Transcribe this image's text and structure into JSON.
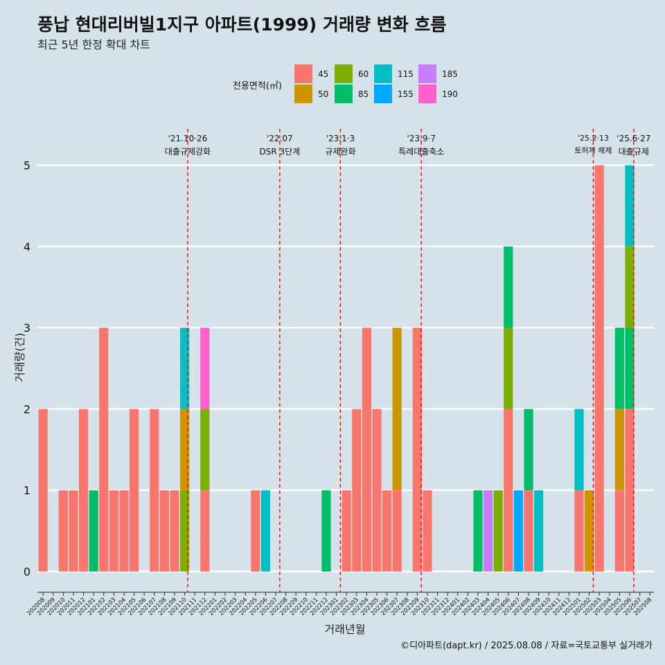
{
  "chart_data": {
    "type": "bar",
    "stacked": true,
    "title": "풍납 현대리버빌1지구 아파트(1999) 거래량 변화 흐름",
    "subtitle": "최근 5년 한정 확대 차트",
    "xlabel": "거래년월",
    "ylabel": "거래량(건)",
    "caption": "©디아파트(dapt.kr) / 2025.08.08 / 자료=국토교통부 실거래가",
    "legend_title": "전용면적(㎡)",
    "legend": [
      {
        "name": "45",
        "color": "#F8766D"
      },
      {
        "name": "50",
        "color": "#CD9600"
      },
      {
        "name": "60",
        "color": "#7CAE00"
      },
      {
        "name": "85",
        "color": "#00BE67"
      },
      {
        "name": "115",
        "color": "#00BFC4"
      },
      {
        "name": "155",
        "color": "#00A9FF"
      },
      {
        "name": "185",
        "color": "#C77CFF"
      },
      {
        "name": "190",
        "color": "#FF61CC"
      }
    ],
    "ylim": [
      0,
      5
    ],
    "yticks": [
      0,
      1,
      2,
      3,
      4,
      5
    ],
    "categories": [
      "202008",
      "202009",
      "202010",
      "202011",
      "202012",
      "202101",
      "202102",
      "202103",
      "202104",
      "202105",
      "202106",
      "202107",
      "202108",
      "202109",
      "202110",
      "202111",
      "202112",
      "202201",
      "202202",
      "202203",
      "202204",
      "202205",
      "202206",
      "202207",
      "202208",
      "202209",
      "202210",
      "202211",
      "202212",
      "202301",
      "202302",
      "202303",
      "202304",
      "202305",
      "202306",
      "202307",
      "202308",
      "202309",
      "202310",
      "202311",
      "202312",
      "202401",
      "202402",
      "202403",
      "202404",
      "202405",
      "202406",
      "202407",
      "202408",
      "202409",
      "202410",
      "202411",
      "202412",
      "202501",
      "202502",
      "202503",
      "202504",
      "202505",
      "202506",
      "202507",
      "202508"
    ],
    "data": [
      {
        "month": "202008",
        "segments": [
          {
            "area": "45",
            "value": 2
          }
        ]
      },
      {
        "month": "202010",
        "segments": [
          {
            "area": "45",
            "value": 1
          }
        ]
      },
      {
        "month": "202011",
        "segments": [
          {
            "area": "45",
            "value": 1
          }
        ]
      },
      {
        "month": "202012",
        "segments": [
          {
            "area": "45",
            "value": 2
          }
        ]
      },
      {
        "month": "202101",
        "segments": [
          {
            "area": "85",
            "value": 1
          }
        ]
      },
      {
        "month": "202102",
        "segments": [
          {
            "area": "45",
            "value": 3
          }
        ]
      },
      {
        "month": "202103",
        "segments": [
          {
            "area": "45",
            "value": 1
          }
        ]
      },
      {
        "month": "202104",
        "segments": [
          {
            "area": "45",
            "value": 1
          }
        ]
      },
      {
        "month": "202105",
        "segments": [
          {
            "area": "45",
            "value": 2
          }
        ]
      },
      {
        "month": "202107",
        "segments": [
          {
            "area": "45",
            "value": 2
          }
        ]
      },
      {
        "month": "202108",
        "segments": [
          {
            "area": "45",
            "value": 1
          }
        ]
      },
      {
        "month": "202109",
        "segments": [
          {
            "area": "45",
            "value": 1
          }
        ]
      },
      {
        "month": "202110",
        "segments": [
          {
            "area": "60",
            "value": 1
          },
          {
            "area": "50",
            "value": 1
          },
          {
            "area": "115",
            "value": 1
          }
        ]
      },
      {
        "month": "202112",
        "segments": [
          {
            "area": "45",
            "value": 1
          },
          {
            "area": "60",
            "value": 1
          },
          {
            "area": "190",
            "value": 1
          }
        ]
      },
      {
        "month": "202205",
        "segments": [
          {
            "area": "45",
            "value": 1
          }
        ]
      },
      {
        "month": "202206",
        "segments": [
          {
            "area": "115",
            "value": 1
          }
        ]
      },
      {
        "month": "202212",
        "segments": [
          {
            "area": "85",
            "value": 1
          }
        ]
      },
      {
        "month": "202302",
        "segments": [
          {
            "area": "45",
            "value": 1
          }
        ]
      },
      {
        "month": "202303",
        "segments": [
          {
            "area": "45",
            "value": 2
          }
        ]
      },
      {
        "month": "202304",
        "segments": [
          {
            "area": "45",
            "value": 3
          }
        ]
      },
      {
        "month": "202305",
        "segments": [
          {
            "area": "45",
            "value": 2
          }
        ]
      },
      {
        "month": "202306",
        "segments": [
          {
            "area": "45",
            "value": 1
          }
        ]
      },
      {
        "month": "202307",
        "segments": [
          {
            "area": "45",
            "value": 1
          },
          {
            "area": "50",
            "value": 2
          }
        ]
      },
      {
        "month": "202309",
        "segments": [
          {
            "area": "45",
            "value": 3
          }
        ]
      },
      {
        "month": "202310",
        "segments": [
          {
            "area": "45",
            "value": 1
          }
        ]
      },
      {
        "month": "202403",
        "segments": [
          {
            "area": "85",
            "value": 1
          }
        ]
      },
      {
        "month": "202404",
        "segments": [
          {
            "area": "185",
            "value": 1
          }
        ]
      },
      {
        "month": "202405",
        "segments": [
          {
            "area": "60",
            "value": 1
          }
        ]
      },
      {
        "month": "202406",
        "segments": [
          {
            "area": "45",
            "value": 2
          },
          {
            "area": "60",
            "value": 1
          },
          {
            "area": "85",
            "value": 1
          }
        ]
      },
      {
        "month": "202407",
        "segments": [
          {
            "area": "155",
            "value": 1
          }
        ]
      },
      {
        "month": "202408",
        "segments": [
          {
            "area": "45",
            "value": 1
          },
          {
            "area": "85",
            "value": 1
          }
        ]
      },
      {
        "month": "202409",
        "segments": [
          {
            "area": "115",
            "value": 1
          }
        ]
      },
      {
        "month": "202501",
        "segments": [
          {
            "area": "45",
            "value": 1
          },
          {
            "area": "115",
            "value": 1
          }
        ]
      },
      {
        "month": "202502",
        "segments": [
          {
            "area": "50",
            "value": 1
          }
        ]
      },
      {
        "month": "202503",
        "segments": [
          {
            "area": "45",
            "value": 5
          }
        ]
      },
      {
        "month": "202505",
        "segments": [
          {
            "area": "45",
            "value": 1
          },
          {
            "area": "50",
            "value": 1
          },
          {
            "area": "85",
            "value": 1
          }
        ]
      },
      {
        "month": "202506",
        "segments": [
          {
            "area": "45",
            "value": 2
          },
          {
            "area": "85",
            "value": 1
          },
          {
            "area": "60",
            "value": 1
          },
          {
            "area": "115",
            "value": 1
          }
        ]
      }
    ],
    "events": [
      {
        "date": "'21.10·26",
        "label": "대출규제강화",
        "month_position": 14.3
      },
      {
        "date": "'22.07",
        "label": "DSR 3단계",
        "month_position": 23.4
      },
      {
        "date": "'23.1·3",
        "label": "규제완화",
        "month_position": 29.4
      },
      {
        "date": "'23.9·7",
        "label": "특례대출축소",
        "month_position": 37.4
      },
      {
        "date": "'25.2·13",
        "label": "토허제 해제",
        "month_position": 54.4
      },
      {
        "date": "'25.6·27",
        "label": "대출규제",
        "month_position": 58.4
      }
    ]
  }
}
